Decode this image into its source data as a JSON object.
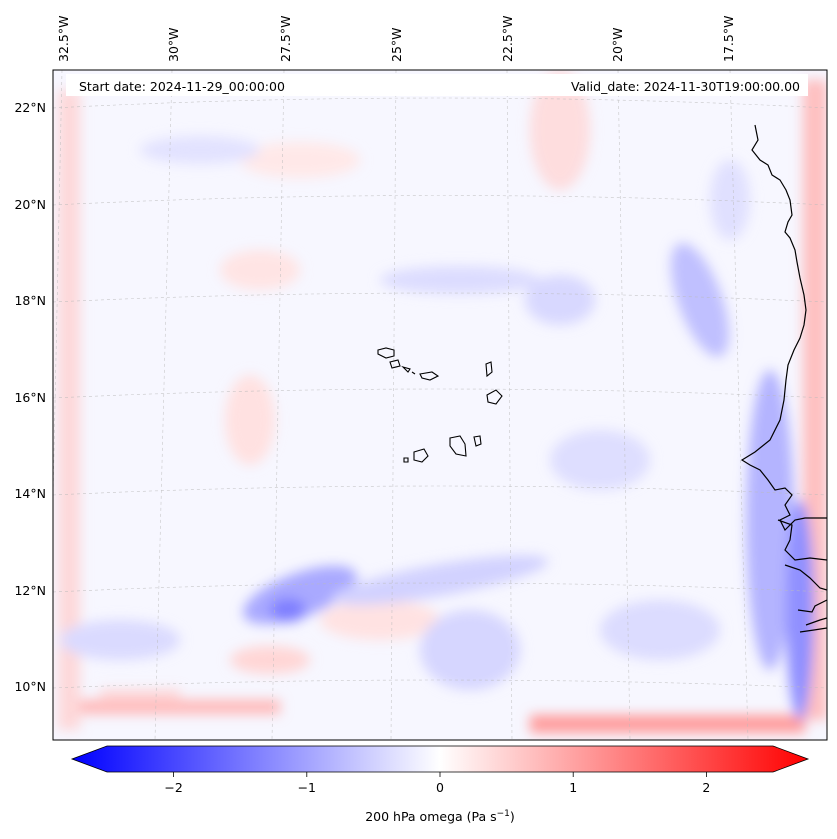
{
  "header": {
    "start_date": "Start date: 2024-11-29_00:00:00",
    "valid_date": "Valid_date: 2024-11-30T19:00:00.00"
  },
  "longitude_labels": [
    "32.5°W",
    "30°W",
    "27.5°W",
    "25°W",
    "22.5°W",
    "20°W",
    "17.5°W"
  ],
  "latitude_labels": [
    "22°N",
    "20°N",
    "18°N",
    "16°N",
    "14°N",
    "12°N",
    "10°N"
  ],
  "colorbar": {
    "label_main": "200 hPa omega (Pa s",
    "label_exp": "−1",
    "label_close": ")",
    "ticks": [
      "−2",
      "−1",
      "0",
      "1",
      "2"
    ],
    "range": [
      -2.75,
      2.75
    ],
    "tick_values": [
      -2,
      -1,
      0,
      1,
      2
    ],
    "colors": {
      "negative": "#0000ff",
      "zero": "#ffffff",
      "positive": "#ff0000"
    }
  },
  "coastline_color": "#000000"
}
